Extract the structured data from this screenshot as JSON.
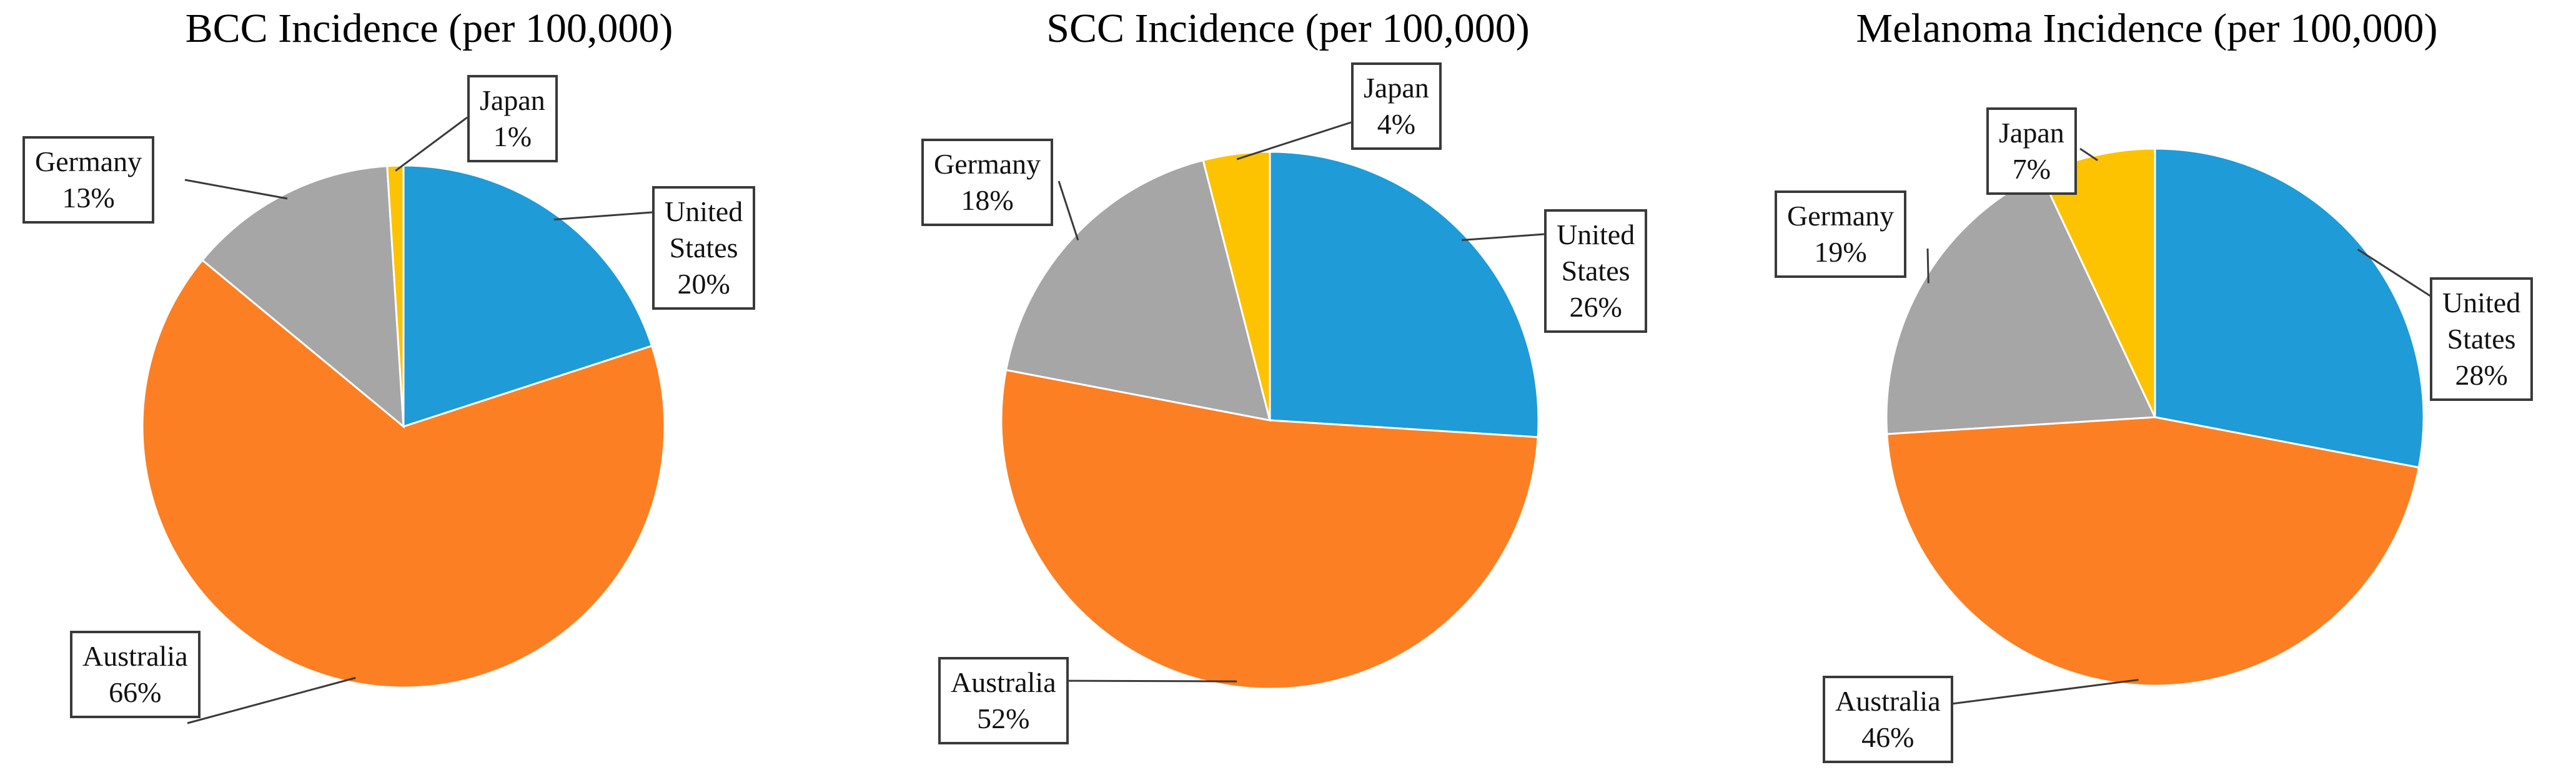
{
  "colors": {
    "United States": "#1f9bd7",
    "Australia": "#fd7f23",
    "Germany": "#a6a6a6",
    "Japan": "#fdc200"
  },
  "chart_data": [
    {
      "type": "pie",
      "title": "BCC Incidence (per 100,000)",
      "slices": [
        {
          "name": "United States",
          "label_lines": [
            "United",
            "States"
          ],
          "value": 20,
          "value_label": "20%"
        },
        {
          "name": "Australia",
          "label_lines": [
            "Australia"
          ],
          "value": 66,
          "value_label": "66%"
        },
        {
          "name": "Germany",
          "label_lines": [
            "Germany"
          ],
          "value": 13,
          "value_label": "13%"
        },
        {
          "name": "Japan",
          "label_lines": [
            "Japan"
          ],
          "value": 1,
          "value_label": "1%"
        }
      ]
    },
    {
      "type": "pie",
      "title": "SCC Incidence (per 100,000)",
      "slices": [
        {
          "name": "United States",
          "label_lines": [
            "United",
            "States"
          ],
          "value": 26,
          "value_label": "26%"
        },
        {
          "name": "Australia",
          "label_lines": [
            "Australia"
          ],
          "value": 52,
          "value_label": "52%"
        },
        {
          "name": "Germany",
          "label_lines": [
            "Germany"
          ],
          "value": 18,
          "value_label": "18%"
        },
        {
          "name": "Japan",
          "label_lines": [
            "Japan"
          ],
          "value": 4,
          "value_label": "4%"
        }
      ]
    },
    {
      "type": "pie",
      "title": "Melanoma Incidence (per 100,000)",
      "slices": [
        {
          "name": "United States",
          "label_lines": [
            "United",
            "States"
          ],
          "value": 28,
          "value_label": "28%"
        },
        {
          "name": "Australia",
          "label_lines": [
            "Australia"
          ],
          "value": 46,
          "value_label": "46%"
        },
        {
          "name": "Germany",
          "label_lines": [
            "Germany"
          ],
          "value": 19,
          "value_label": "19%"
        },
        {
          "name": "Japan",
          "label_lines": [
            "Japan"
          ],
          "value": 7,
          "value_label": "7%"
        }
      ]
    }
  ]
}
